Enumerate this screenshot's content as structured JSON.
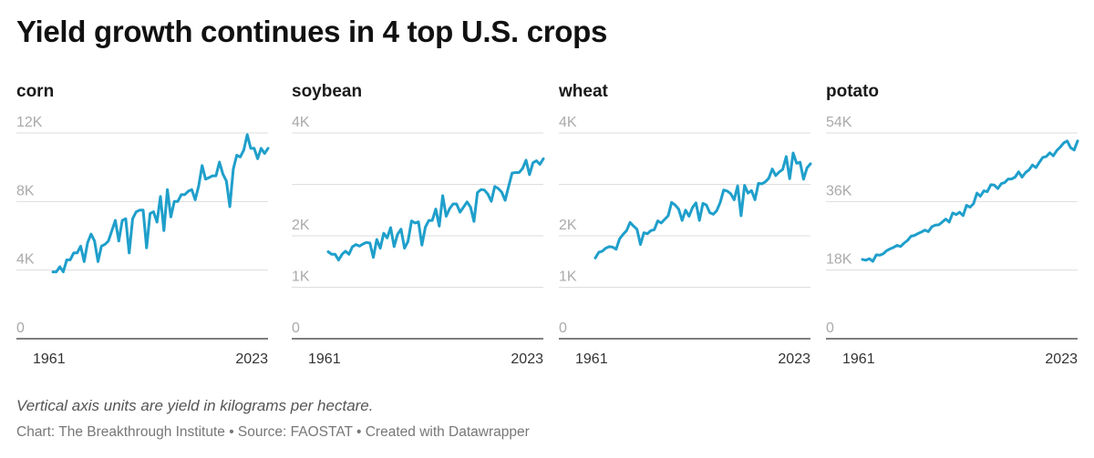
{
  "title": "Yield growth continues in 4 top U.S. crops",
  "note": "Vertical axis units are yield in kilograms per hectare.",
  "credit": "Chart: The Breakthrough Institute • Source: FAOSTAT • Created with Datawrapper",
  "colors": {
    "line": "#1f9fcb",
    "grid": "#dddddd",
    "axis": "#333333",
    "tick_label": "#aaaaaa",
    "year_label": "#333333"
  },
  "chart_data": [
    {
      "type": "line",
      "title": "corn",
      "x_range": [
        1961,
        2023
      ],
      "x_tick_labels": [
        "1961",
        "2023"
      ],
      "ylim": [
        0,
        12000
      ],
      "y_ticks": [
        0,
        4000,
        8000,
        12000
      ],
      "y_tick_labels": [
        "0",
        "4K",
        "8K",
        "12K"
      ],
      "series": [
        {
          "name": "corn",
          "values": [
            3900,
            3900,
            4200,
            3900,
            4600,
            4600,
            5000,
            5000,
            5400,
            4500,
            5600,
            6100,
            5700,
            4500,
            5400,
            5500,
            5700,
            6300,
            6900,
            5700,
            6900,
            7000,
            5000,
            7000,
            7400,
            7500,
            7500,
            5300,
            7300,
            7400,
            6800,
            8300,
            6300,
            8700,
            7100,
            8000,
            8000,
            8400,
            8400,
            8600,
            8700,
            8100,
            8900,
            10100,
            9300,
            9400,
            9500,
            9500,
            10300,
            9600,
            9200,
            7700,
            9900,
            10700,
            10600,
            11000,
            11900,
            11100,
            11100,
            10500,
            11100,
            10800,
            11100
          ]
        }
      ]
    },
    {
      "type": "line",
      "title": "soybean",
      "x_range": [
        1961,
        2023
      ],
      "x_tick_labels": [
        "1961",
        "2023"
      ],
      "ylim": [
        0,
        4000
      ],
      "y_ticks": [
        0,
        1000,
        2000,
        3000,
        4000
      ],
      "y_tick_labels": [
        "0",
        "1K",
        "2K",
        "",
        "4K"
      ],
      "series": [
        {
          "name": "soybean",
          "values": [
            1690,
            1640,
            1640,
            1530,
            1640,
            1700,
            1640,
            1790,
            1830,
            1800,
            1840,
            1870,
            1860,
            1580,
            1930,
            1760,
            2050,
            1960,
            2160,
            1790,
            2030,
            2130,
            1760,
            1890,
            2290,
            2250,
            2270,
            1820,
            2170,
            2300,
            2300,
            2520,
            2190,
            2780,
            2380,
            2530,
            2620,
            2620,
            2460,
            2560,
            2660,
            2560,
            2280,
            2840,
            2900,
            2890,
            2810,
            2670,
            2960,
            2920,
            2850,
            2690,
            2960,
            3220,
            3230,
            3230,
            3310,
            3470,
            3190,
            3420,
            3460,
            3390,
            3500
          ]
        }
      ]
    },
    {
      "type": "line",
      "title": "wheat",
      "x_range": [
        1961,
        2023
      ],
      "x_tick_labels": [
        "1961",
        "2023"
      ],
      "ylim": [
        0,
        4000
      ],
      "y_ticks": [
        0,
        1000,
        2000,
        3000,
        4000
      ],
      "y_tick_labels": [
        "0",
        "1K",
        "2K",
        "",
        "4K"
      ],
      "series": [
        {
          "name": "wheat",
          "values": [
            1570,
            1680,
            1700,
            1760,
            1790,
            1780,
            1740,
            1940,
            2030,
            2100,
            2260,
            2190,
            2130,
            1830,
            2060,
            2040,
            2100,
            2120,
            2290,
            2250,
            2320,
            2390,
            2650,
            2600,
            2520,
            2300,
            2500,
            2380,
            2550,
            2640,
            2300,
            2630,
            2600,
            2450,
            2420,
            2490,
            2650,
            2890,
            2870,
            2820,
            2700,
            2970,
            2390,
            2980,
            2830,
            2880,
            2700,
            3020,
            3010,
            3050,
            3120,
            3300,
            3170,
            3240,
            3290,
            3540,
            3110,
            3610,
            3410,
            3430,
            3100,
            3320,
            3400
          ]
        }
      ]
    },
    {
      "type": "line",
      "title": "potato",
      "x_range": [
        1961,
        2023
      ],
      "x_tick_labels": [
        "1961",
        "2023"
      ],
      "ylim": [
        0,
        54000
      ],
      "y_ticks": [
        0,
        18000,
        36000,
        54000
      ],
      "y_tick_labels": [
        "0",
        "18K",
        "36K",
        "54K"
      ],
      "series": [
        {
          "name": "potato",
          "values": [
            20800,
            20600,
            21000,
            20300,
            22000,
            21900,
            22300,
            23100,
            23600,
            24000,
            24500,
            24200,
            25100,
            25800,
            26900,
            27100,
            27600,
            28000,
            28500,
            28100,
            29400,
            29800,
            29900,
            30600,
            31400,
            30600,
            33000,
            32600,
            33200,
            32300,
            35000,
            34500,
            35400,
            38200,
            37400,
            38800,
            38600,
            40400,
            40300,
            39400,
            40700,
            41000,
            41900,
            41900,
            42400,
            43800,
            42400,
            43600,
            44300,
            45600,
            44900,
            46300,
            47600,
            47800,
            48800,
            48000,
            49400,
            50300,
            51400,
            51900,
            50100,
            49500,
            51900
          ]
        }
      ]
    }
  ]
}
